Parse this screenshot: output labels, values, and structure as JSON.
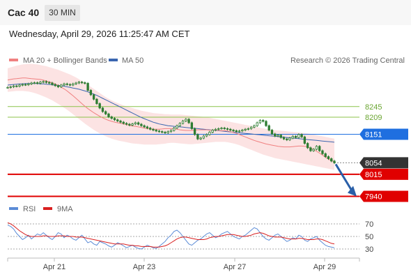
{
  "header": {
    "title": "Cac 40",
    "timeframe": "30 MIN",
    "datetime": "Wednesday, April 29, 2026 11:25:47 AM CET"
  },
  "legend": {
    "ma20": "MA 20 + Bollinger Bands",
    "ma50": "MA 50",
    "rsi": "RSI",
    "ma9": "9MA",
    "attribution": "Research © 2026 Trading Central"
  },
  "colors": {
    "ma20": "#f08080",
    "bollinger": "#fbdada",
    "ma50": "#3a66b0",
    "candle": "#2e7d32",
    "support": "#e00000",
    "resistance": "#8bc34a",
    "pivot": "#1f6fe0",
    "last": "#333333",
    "rsi": "#5b8bd6",
    "rsi_ma": "#d92020",
    "arrow": "#2a5fa8"
  },
  "chart_data": {
    "type": "candlestick",
    "x_ticks": [
      "Apr 21",
      "Apr 23",
      "Apr 27",
      "Apr 29"
    ],
    "price_ylim": [
      7920,
      8370
    ],
    "levels": [
      {
        "label": "8245",
        "value": 8245,
        "kind": "resistance"
      },
      {
        "label": "8209",
        "value": 8209,
        "kind": "resistance"
      },
      {
        "label": "8151",
        "value": 8151,
        "kind": "pivot"
      },
      {
        "label": "8054",
        "value": 8054,
        "kind": "last"
      },
      {
        "label": "8015",
        "value": 8015,
        "kind": "support"
      },
      {
        "label": "7940",
        "value": 7940,
        "kind": "support"
      }
    ],
    "closes": [
      8310,
      8312,
      8315,
      8314,
      8318,
      8320,
      8319,
      8322,
      8325,
      8326,
      8324,
      8328,
      8330,
      8327,
      8325,
      8320,
      8316,
      8312,
      8318,
      8322,
      8320,
      8318,
      8322,
      8325,
      8328,
      8326,
      8324,
      8300,
      8285,
      8270,
      8255,
      8240,
      8228,
      8220,
      8210,
      8205,
      8200,
      8196,
      8192,
      8188,
      8185,
      8182,
      8186,
      8190,
      8185,
      8180,
      8176,
      8172,
      8168,
      8165,
      8162,
      8160,
      8158,
      8156,
      8160,
      8164,
      8172,
      8180,
      8188,
      8196,
      8202,
      8190,
      8170,
      8150,
      8135,
      8138,
      8145,
      8150,
      8158,
      8165,
      8168,
      8170,
      8172,
      8170,
      8168,
      8165,
      8163,
      8160,
      8162,
      8165,
      8168,
      8170,
      8175,
      8180,
      8190,
      8198,
      8195,
      8180,
      8165,
      8152,
      8145,
      8148,
      8140,
      8135,
      8132,
      8138,
      8144,
      8140,
      8150,
      8142,
      8120,
      8105,
      8095,
      8100,
      8110,
      8095,
      8085,
      8075,
      8068,
      8060,
      8054
    ],
    "ma20": [
      8335,
      8337,
      8339,
      8340,
      8341,
      8342,
      8342,
      8341,
      8340,
      8339,
      8338,
      8337,
      8335,
      8332,
      8329,
      8326,
      8322,
      8317,
      8311,
      8305,
      8298,
      8290,
      8282,
      8273,
      8264,
      8255,
      8246,
      8238,
      8231,
      8224,
      8218,
      8212,
      8207,
      8202,
      8198,
      8195,
      8192,
      8190,
      8188,
      8186,
      8184,
      8181,
      8179,
      8178,
      8176,
      8174,
      8172,
      8170,
      8169,
      8168,
      8168,
      8168,
      8169,
      8170,
      8170,
      8170,
      8169,
      8168,
      8166,
      8165,
      8164,
      8164,
      8164,
      8165,
      8166,
      8166,
      8166,
      8166,
      8165,
      8165,
      8165,
      8164,
      8163,
      8163,
      8162,
      8160,
      8157,
      8154,
      8150,
      8146,
      8142,
      8138,
      8134,
      8130,
      8127,
      8124,
      8121,
      8118,
      8116,
      8114,
      8112,
      8110,
      8109,
      8108,
      8108,
      8108,
      8109,
      8110,
      8111,
      8111,
      8110,
      8108,
      8104,
      8099,
      8093,
      8087,
      8080,
      8073,
      8067,
      8061,
      8058
    ],
    "bb_upper": [
      8375,
      8378,
      8381,
      8384,
      8386,
      8388,
      8389,
      8390,
      8390,
      8389,
      8388,
      8386,
      8384,
      8382,
      8379,
      8376,
      8373,
      8370,
      8366,
      8362,
      8358,
      8354,
      8349,
      8344,
      8338,
      8332,
      8326,
      8319,
      8312,
      8305,
      8298,
      8291,
      8284,
      8277,
      8271,
      8266,
      8261,
      8257,
      8253,
      8249,
      8246,
      8243,
      8240,
      8237,
      8234,
      8231,
      8229,
      8227,
      8225,
      8223,
      8222,
      8221,
      8220,
      8219,
      8219,
      8218,
      8218,
      8218,
      8218,
      8217,
      8216,
      8215,
      8214,
      8213,
      8212,
      8211,
      8210,
      8209,
      8207,
      8205,
      8203,
      8201,
      8199,
      8197,
      8195,
      8193,
      8191,
      8189,
      8187,
      8185,
      8183,
      8181,
      8179,
      8177,
      8175,
      8173,
      8171,
      8169,
      8167,
      8166,
      8165,
      8164,
      8163,
      8162,
      8161,
      8160,
      8159,
      8158,
      8157,
      8156,
      8155,
      8154,
      8152,
      8150,
      8148,
      8146,
      8144,
      8142,
      8140,
      8138,
      8136
    ],
    "bb_lower": [
      8295,
      8296,
      8297,
      8298,
      8298,
      8298,
      8297,
      8296,
      8294,
      8291,
      8288,
      8284,
      8280,
      8276,
      8271,
      8266,
      8260,
      8254,
      8248,
      8241,
      8234,
      8227,
      8219,
      8211,
      8203,
      8195,
      8187,
      8180,
      8173,
      8166,
      8160,
      8154,
      8149,
      8144,
      8140,
      8136,
      8133,
      8130,
      8128,
      8126,
      8124,
      8122,
      8120,
      8119,
      8118,
      8117,
      8116,
      8116,
      8116,
      8116,
      8116,
      8117,
      8118,
      8119,
      8121,
      8122,
      8122,
      8121,
      8120,
      8119,
      8118,
      8117,
      8117,
      8118,
      8119,
      8120,
      8121,
      8122,
      8123,
      8124,
      8125,
      8125,
      8125,
      8125,
      8124,
      8122,
      8120,
      8117,
      8114,
      8110,
      8106,
      8102,
      8098,
      8094,
      8090,
      8086,
      8082,
      8079,
      8076,
      8073,
      8070,
      8068,
      8066,
      8064,
      8062,
      8060,
      8058,
      8056,
      8054,
      8052,
      8050,
      8048,
      8046,
      8044,
      8042,
      8040,
      8038,
      8036,
      8034,
      8032,
      8030
    ],
    "ma50": [
      8318,
      8319,
      8320,
      8321,
      8322,
      8322,
      8323,
      8323,
      8323,
      8323,
      8323,
      8322,
      8322,
      8321,
      8320,
      8319,
      8318,
      8317,
      8316,
      8314,
      8312,
      8310,
      8308,
      8306,
      8304,
      8301,
      8298,
      8295,
      8291,
      8287,
      8283,
      8278,
      8273,
      8268,
      8263,
      8258,
      8253,
      8248,
      8243,
      8238,
      8233,
      8228,
      8223,
      8218,
      8213,
      8208,
      8204,
      8200,
      8196,
      8192,
      8189,
      8186,
      8184,
      8182,
      8180,
      8179,
      8178,
      8177,
      8176,
      8175,
      8174,
      8173,
      8172,
      8171,
      8170,
      8169,
      8168,
      8167,
      8166,
      8165,
      8164,
      8163,
      8162,
      8161,
      8160,
      8159,
      8158,
      8157,
      8156,
      8155,
      8154,
      8153,
      8152,
      8151,
      8150,
      8149,
      8148,
      8147,
      8146,
      8145,
      8144,
      8143,
      8142,
      8141,
      8140,
      8139,
      8138,
      8137,
      8136,
      8135,
      8134,
      8133,
      8132,
      8131,
      8130,
      8129,
      8128,
      8127,
      8126,
      8125,
      8124
    ],
    "forecast_path": [
      8054,
      7940
    ],
    "rsi_ticks": [
      "70",
      "50",
      "30"
    ],
    "rsi_ylim": [
      20,
      80
    ],
    "rsi": [
      68,
      66,
      62,
      55,
      50,
      45,
      48,
      52,
      46,
      50,
      54,
      52,
      56,
      52,
      48,
      45,
      50,
      56,
      54,
      48,
      52,
      50,
      46,
      44,
      48,
      52,
      46,
      40,
      42,
      38,
      36,
      42,
      40,
      38,
      35,
      33,
      36,
      40,
      38,
      35,
      32,
      34,
      36,
      33,
      31,
      30,
      33,
      36,
      34,
      32,
      31,
      34,
      38,
      42,
      48,
      52,
      58,
      60,
      56,
      50,
      44,
      38,
      36,
      40,
      44,
      46,
      50,
      54,
      56,
      52,
      48,
      50,
      54,
      56,
      58,
      54,
      50,
      48,
      46,
      50,
      52,
      56,
      60,
      64,
      62,
      56,
      50,
      46,
      44,
      48,
      52,
      54,
      50,
      46,
      42,
      44,
      48,
      46,
      52,
      50,
      44,
      42,
      46,
      48,
      50,
      44,
      40,
      36,
      34,
      33,
      32
    ],
    "rsi_ma": [
      72,
      70,
      67,
      63,
      59,
      56,
      53,
      51,
      50,
      50,
      50,
      50,
      51,
      51,
      50,
      50,
      50,
      51,
      51,
      51,
      50,
      50,
      50,
      49,
      49,
      49,
      48,
      47,
      46,
      45,
      44,
      43,
      42,
      41,
      40,
      39,
      38,
      38,
      38,
      38,
      37,
      36,
      36,
      35,
      35,
      34,
      34,
      34,
      34,
      33,
      33,
      33,
      34,
      35,
      37,
      40,
      43,
      46,
      48,
      49,
      49,
      48,
      47,
      46,
      45,
      45,
      45,
      46,
      48,
      49,
      50,
      50,
      51,
      52,
      53,
      53,
      53,
      52,
      51,
      50,
      50,
      51,
      52,
      54,
      55,
      56,
      55,
      53,
      51,
      50,
      49,
      49,
      49,
      48,
      47,
      46,
      46,
      46,
      47,
      47,
      46,
      45,
      45,
      45,
      46,
      46,
      45,
      43,
      41,
      39,
      38
    ]
  }
}
